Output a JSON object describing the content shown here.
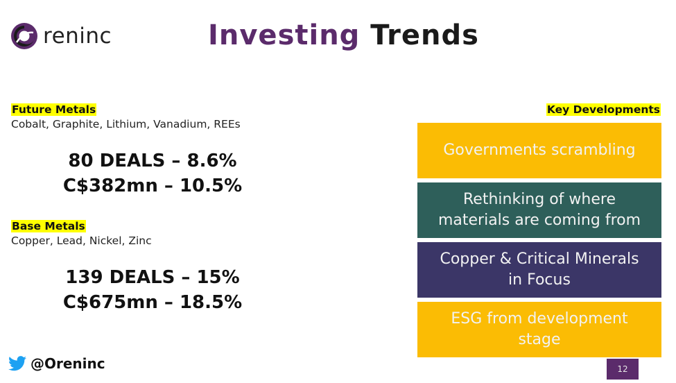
{
  "brand": {
    "name": "reninc",
    "logo_icon": "oreninc-swirl-logo",
    "color": "#5b2b6b"
  },
  "title": {
    "part1": "Investing",
    "part2": "Trends"
  },
  "future_metals": {
    "heading": "Future Metals",
    "subtitle": "Cobalt, Graphite, Lithium, Vanadium, REEs",
    "stat1": "80 DEALS – 8.6%",
    "stat2": "C$382mn – 10.5%"
  },
  "base_metals": {
    "heading": "Base Metals",
    "subtitle": "Copper, Lead, Nickel, Zinc",
    "stat1": "139 DEALS – 15%",
    "stat2": "C$675mn – 18.5%"
  },
  "key_developments": {
    "heading": "Key Developments",
    "items": [
      {
        "lines": [
          "Governments scrambling"
        ],
        "color": "#fbbc04"
      },
      {
        "lines": [
          "Rethinking of where",
          "materials are coming from"
        ],
        "color": "#2e5f5a"
      },
      {
        "lines": [
          "Copper & Critical Minerals",
          "in Focus"
        ],
        "color": "#3b3667"
      },
      {
        "lines": [
          "ESG from development",
          "stage"
        ],
        "color": "#fbbc04"
      }
    ]
  },
  "social": {
    "icon": "twitter-bird-icon",
    "handle": "@Oreninc",
    "color": "#1da1f2"
  },
  "page_number": "12",
  "highlight_color": "#ffff00"
}
